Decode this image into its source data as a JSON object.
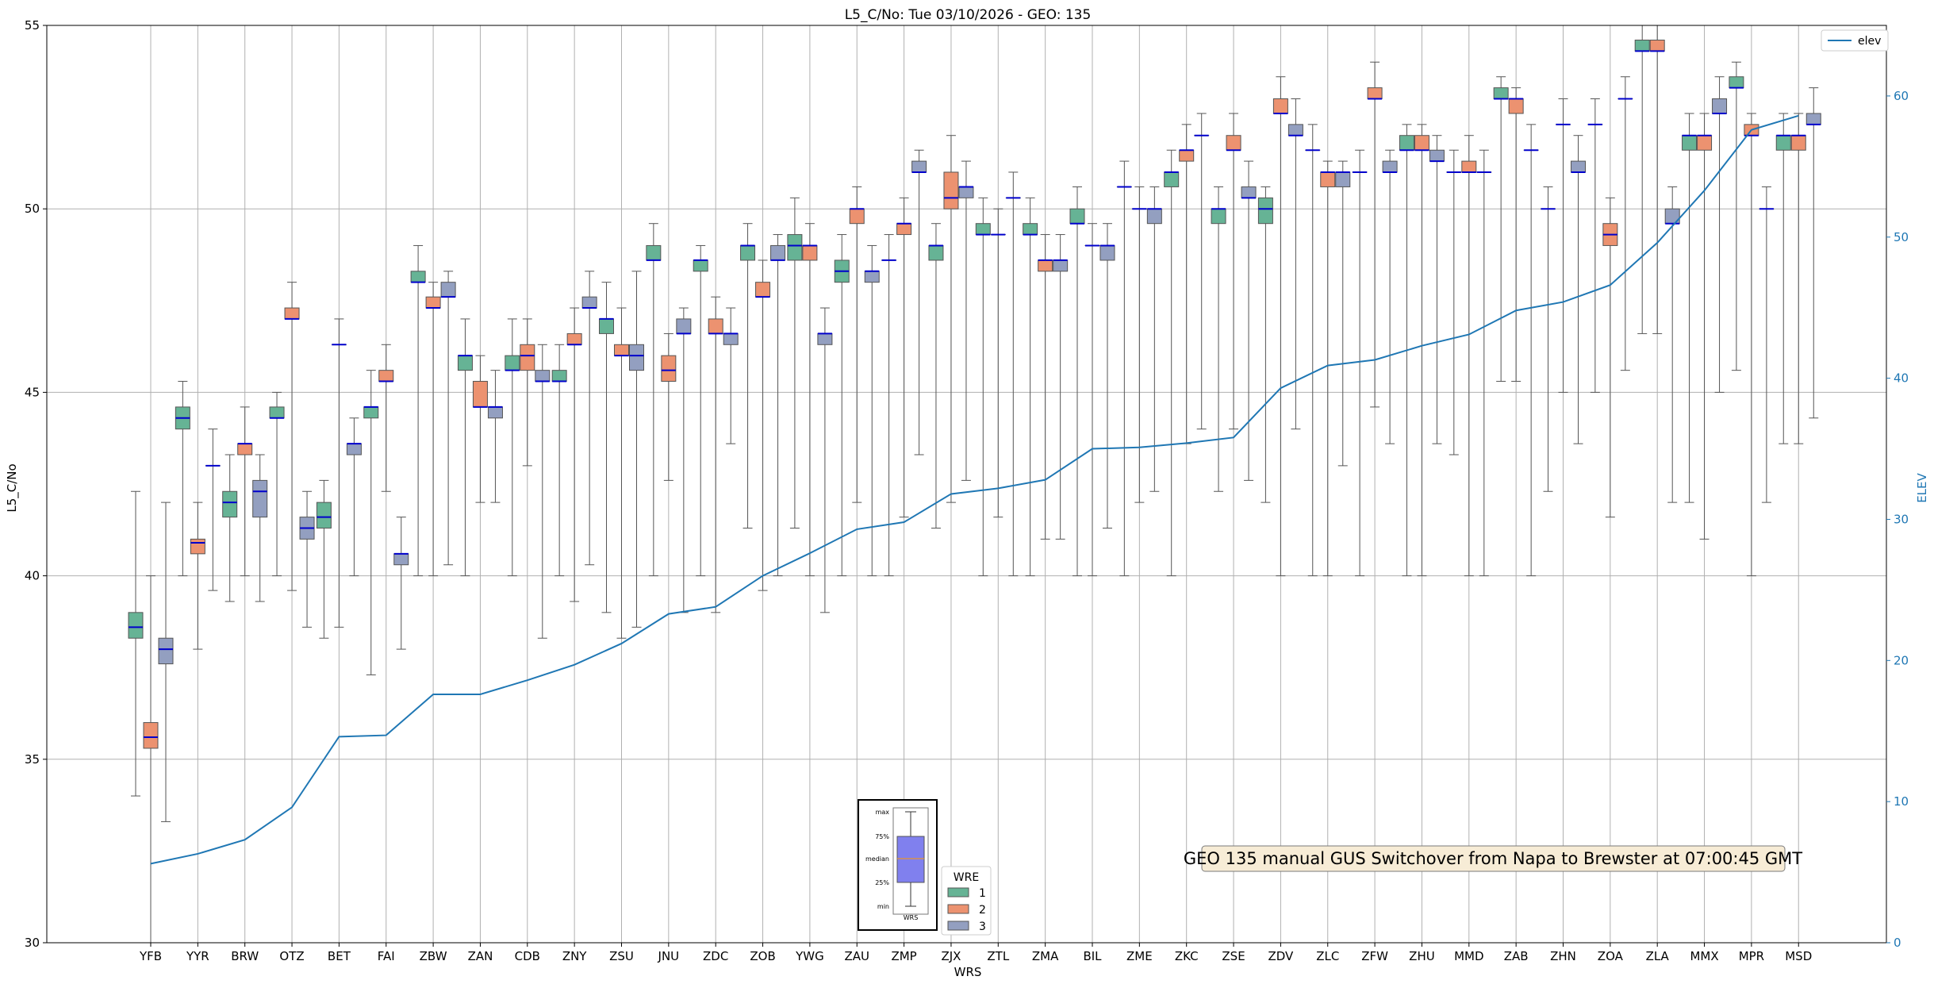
{
  "chart_data": {
    "type": "box",
    "title": "L5_C/No: Tue 03/10/2026 - GEO: 135",
    "xlabel": "WRS",
    "ylabel": "L5_C/No",
    "ylabel_right": "ELEV",
    "ylim": [
      30,
      55
    ],
    "ylim_right": [
      0,
      65
    ],
    "yticks": [
      30,
      35,
      40,
      45,
      50,
      55
    ],
    "yticks_right": [
      0,
      10,
      20,
      30,
      40,
      50,
      60
    ],
    "grid": true,
    "categories": [
      "YFB",
      "YYR",
      "BRW",
      "OTZ",
      "BET",
      "FAI",
      "ZBW",
      "ZAN",
      "CDB",
      "ZNY",
      "ZSU",
      "JNU",
      "ZDC",
      "ZOB",
      "YWG",
      "ZAU",
      "ZMP",
      "ZJX",
      "ZTL",
      "ZMA",
      "BIL",
      "ZME",
      "ZKC",
      "ZSE",
      "ZDV",
      "ZLC",
      "ZFW",
      "ZHU",
      "MMD",
      "ZAB",
      "ZHN",
      "ZOA",
      "ZLA",
      "MMX",
      "MPR",
      "MSD"
    ],
    "series_colors": {
      "1": "#66b395",
      "2": "#ec9270",
      "3": "#939fc0"
    },
    "elev_color": "#1f77b4",
    "legend": {
      "elev_label": "elev",
      "elev_position": "top-right",
      "wre_title": "WRE",
      "wre_labels": [
        "1",
        "2",
        "3"
      ],
      "wre_position": "bottom-center"
    },
    "boxes": [
      {
        "cat": "YFB",
        "wre": 1,
        "min": 34.0,
        "q1": 38.3,
        "med": 38.6,
        "q3": 39.0,
        "max": 42.3
      },
      {
        "cat": "YFB",
        "wre": 2,
        "min": 30.0,
        "q1": 35.3,
        "med": 35.6,
        "q3": 36.0,
        "max": 40.0
      },
      {
        "cat": "YFB",
        "wre": 3,
        "min": 33.3,
        "q1": 37.6,
        "med": 38.0,
        "q3": 38.3,
        "max": 42.0
      },
      {
        "cat": "YYR",
        "wre": 1,
        "min": 40.0,
        "q1": 44.0,
        "med": 44.3,
        "q3": 44.6,
        "max": 45.3
      },
      {
        "cat": "YYR",
        "wre": 2,
        "min": 38.0,
        "q1": 40.6,
        "med": 40.9,
        "q3": 41.0,
        "max": 42.0
      },
      {
        "cat": "YYR",
        "wre": 3,
        "min": 39.6,
        "q1": 43.0,
        "med": 43.0,
        "q3": 43.0,
        "max": 44.0
      },
      {
        "cat": "BRW",
        "wre": 1,
        "min": 39.3,
        "q1": 41.6,
        "med": 42.0,
        "q3": 42.3,
        "max": 43.3
      },
      {
        "cat": "BRW",
        "wre": 2,
        "min": 40.0,
        "q1": 43.3,
        "med": 43.6,
        "q3": 43.6,
        "max": 44.6
      },
      {
        "cat": "BRW",
        "wre": 3,
        "min": 39.3,
        "q1": 41.6,
        "med": 42.3,
        "q3": 42.6,
        "max": 43.3
      },
      {
        "cat": "OTZ",
        "wre": 1,
        "min": 40.0,
        "q1": 44.3,
        "med": 44.3,
        "q3": 44.6,
        "max": 45.0
      },
      {
        "cat": "OTZ",
        "wre": 2,
        "min": 39.6,
        "q1": 47.0,
        "med": 47.0,
        "q3": 47.3,
        "max": 48.0
      },
      {
        "cat": "OTZ",
        "wre": 3,
        "min": 38.6,
        "q1": 41.0,
        "med": 41.3,
        "q3": 41.6,
        "max": 42.3
      },
      {
        "cat": "BET",
        "wre": 1,
        "min": 38.3,
        "q1": 41.3,
        "med": 41.6,
        "q3": 42.0,
        "max": 42.6
      },
      {
        "cat": "BET",
        "wre": 2,
        "min": 38.6,
        "q1": 46.3,
        "med": 46.3,
        "q3": 46.3,
        "max": 47.0
      },
      {
        "cat": "BET",
        "wre": 3,
        "min": 40.0,
        "q1": 43.3,
        "med": 43.6,
        "q3": 43.6,
        "max": 44.3
      },
      {
        "cat": "FAI",
        "wre": 1,
        "min": 37.3,
        "q1": 44.3,
        "med": 44.6,
        "q3": 44.6,
        "max": 45.6
      },
      {
        "cat": "FAI",
        "wre": 2,
        "min": 42.3,
        "q1": 45.3,
        "med": 45.3,
        "q3": 45.6,
        "max": 46.3
      },
      {
        "cat": "FAI",
        "wre": 3,
        "min": 38.0,
        "q1": 40.3,
        "med": 40.6,
        "q3": 40.6,
        "max": 41.6
      },
      {
        "cat": "ZBW",
        "wre": 1,
        "min": 40.0,
        "q1": 48.0,
        "med": 48.0,
        "q3": 48.3,
        "max": 49.0
      },
      {
        "cat": "ZBW",
        "wre": 2,
        "min": 40.0,
        "q1": 47.3,
        "med": 47.3,
        "q3": 47.6,
        "max": 48.0
      },
      {
        "cat": "ZBW",
        "wre": 3,
        "min": 40.3,
        "q1": 47.6,
        "med": 47.6,
        "q3": 48.0,
        "max": 48.3
      },
      {
        "cat": "ZAN",
        "wre": 1,
        "min": 40.0,
        "q1": 45.6,
        "med": 46.0,
        "q3": 46.0,
        "max": 47.0
      },
      {
        "cat": "ZAN",
        "wre": 2,
        "min": 42.0,
        "q1": 44.6,
        "med": 44.6,
        "q3": 45.3,
        "max": 46.0
      },
      {
        "cat": "ZAN",
        "wre": 3,
        "min": 42.0,
        "q1": 44.3,
        "med": 44.6,
        "q3": 44.6,
        "max": 45.6
      },
      {
        "cat": "CDB",
        "wre": 1,
        "min": 40.0,
        "q1": 45.6,
        "med": 45.6,
        "q3": 46.0,
        "max": 47.0
      },
      {
        "cat": "CDB",
        "wre": 2,
        "min": 43.0,
        "q1": 45.6,
        "med": 46.0,
        "q3": 46.3,
        "max": 47.0
      },
      {
        "cat": "CDB",
        "wre": 3,
        "min": 38.3,
        "q1": 45.3,
        "med": 45.3,
        "q3": 45.6,
        "max": 46.3
      },
      {
        "cat": "ZNY",
        "wre": 1,
        "min": 40.0,
        "q1": 45.3,
        "med": 45.3,
        "q3": 45.6,
        "max": 46.3
      },
      {
        "cat": "ZNY",
        "wre": 2,
        "min": 39.3,
        "q1": 46.3,
        "med": 46.3,
        "q3": 46.6,
        "max": 47.3
      },
      {
        "cat": "ZNY",
        "wre": 3,
        "min": 40.3,
        "q1": 47.3,
        "med": 47.3,
        "q3": 47.6,
        "max": 48.3
      },
      {
        "cat": "ZSU",
        "wre": 1,
        "min": 39.0,
        "q1": 46.6,
        "med": 47.0,
        "q3": 47.0,
        "max": 48.0
      },
      {
        "cat": "ZSU",
        "wre": 2,
        "min": 38.3,
        "q1": 46.0,
        "med": 46.0,
        "q3": 46.3,
        "max": 47.3
      },
      {
        "cat": "ZSU",
        "wre": 3,
        "min": 38.6,
        "q1": 45.6,
        "med": 46.0,
        "q3": 46.3,
        "max": 48.3
      },
      {
        "cat": "JNU",
        "wre": 1,
        "min": 40.0,
        "q1": 48.6,
        "med": 48.6,
        "q3": 49.0,
        "max": 49.6
      },
      {
        "cat": "JNU",
        "wre": 2,
        "min": 42.6,
        "q1": 45.3,
        "med": 45.6,
        "q3": 46.0,
        "max": 46.6
      },
      {
        "cat": "JNU",
        "wre": 3,
        "min": 39.0,
        "q1": 46.6,
        "med": 46.6,
        "q3": 47.0,
        "max": 47.3
      },
      {
        "cat": "ZDC",
        "wre": 1,
        "min": 40.0,
        "q1": 48.3,
        "med": 48.6,
        "q3": 48.6,
        "max": 49.0
      },
      {
        "cat": "ZDC",
        "wre": 2,
        "min": 39.0,
        "q1": 46.6,
        "med": 46.6,
        "q3": 47.0,
        "max": 47.6
      },
      {
        "cat": "ZDC",
        "wre": 3,
        "min": 43.6,
        "q1": 46.3,
        "med": 46.6,
        "q3": 46.6,
        "max": 47.3
      },
      {
        "cat": "ZOB",
        "wre": 1,
        "min": 41.3,
        "q1": 48.6,
        "med": 49.0,
        "q3": 49.0,
        "max": 49.6
      },
      {
        "cat": "ZOB",
        "wre": 2,
        "min": 39.6,
        "q1": 47.6,
        "med": 47.6,
        "q3": 48.0,
        "max": 48.6
      },
      {
        "cat": "ZOB",
        "wre": 3,
        "min": 40.0,
        "q1": 48.6,
        "med": 48.6,
        "q3": 49.0,
        "max": 49.3
      },
      {
        "cat": "YWG",
        "wre": 1,
        "min": 41.3,
        "q1": 48.6,
        "med": 49.0,
        "q3": 49.3,
        "max": 50.3
      },
      {
        "cat": "YWG",
        "wre": 2,
        "min": 40.0,
        "q1": 48.6,
        "med": 49.0,
        "q3": 49.0,
        "max": 49.6
      },
      {
        "cat": "YWG",
        "wre": 3,
        "min": 39.0,
        "q1": 46.3,
        "med": 46.6,
        "q3": 46.6,
        "max": 47.3
      },
      {
        "cat": "ZAU",
        "wre": 1,
        "min": 40.0,
        "q1": 48.0,
        "med": 48.3,
        "q3": 48.6,
        "max": 49.3
      },
      {
        "cat": "ZAU",
        "wre": 2,
        "min": 42.0,
        "q1": 49.6,
        "med": 50.0,
        "q3": 50.0,
        "max": 50.6
      },
      {
        "cat": "ZAU",
        "wre": 3,
        "min": 40.0,
        "q1": 48.0,
        "med": 48.3,
        "q3": 48.3,
        "max": 49.0
      },
      {
        "cat": "ZMP",
        "wre": 1,
        "min": 40.0,
        "q1": 48.6,
        "med": 48.6,
        "q3": 48.6,
        "max": 49.3
      },
      {
        "cat": "ZMP",
        "wre": 2,
        "min": 41.6,
        "q1": 49.3,
        "med": 49.6,
        "q3": 49.6,
        "max": 50.3
      },
      {
        "cat": "ZMP",
        "wre": 3,
        "min": 43.3,
        "q1": 51.0,
        "med": 51.0,
        "q3": 51.3,
        "max": 51.6
      },
      {
        "cat": "ZJX",
        "wre": 1,
        "min": 41.3,
        "q1": 48.6,
        "med": 49.0,
        "q3": 49.0,
        "max": 49.6
      },
      {
        "cat": "ZJX",
        "wre": 2,
        "min": 42.0,
        "q1": 50.0,
        "med": 50.3,
        "q3": 51.0,
        "max": 52.0
      },
      {
        "cat": "ZJX",
        "wre": 3,
        "min": 42.6,
        "q1": 50.3,
        "med": 50.6,
        "q3": 50.6,
        "max": 51.3
      },
      {
        "cat": "ZTL",
        "wre": 1,
        "min": 40.0,
        "q1": 49.3,
        "med": 49.3,
        "q3": 49.6,
        "max": 50.3
      },
      {
        "cat": "ZTL",
        "wre": 2,
        "min": 41.6,
        "q1": 49.3,
        "med": 49.3,
        "q3": 49.3,
        "max": 50.0
      },
      {
        "cat": "ZTL",
        "wre": 3,
        "min": 40.0,
        "q1": 50.3,
        "med": 50.3,
        "q3": 50.3,
        "max": 51.0
      },
      {
        "cat": "ZMA",
        "wre": 1,
        "min": 40.0,
        "q1": 49.3,
        "med": 49.3,
        "q3": 49.6,
        "max": 50.3
      },
      {
        "cat": "ZMA",
        "wre": 2,
        "min": 41.0,
        "q1": 48.3,
        "med": 48.6,
        "q3": 48.6,
        "max": 49.3
      },
      {
        "cat": "ZMA",
        "wre": 3,
        "min": 41.0,
        "q1": 48.3,
        "med": 48.6,
        "q3": 48.6,
        "max": 49.3
      },
      {
        "cat": "BIL",
        "wre": 1,
        "min": 40.0,
        "q1": 49.6,
        "med": 49.6,
        "q3": 50.0,
        "max": 50.6
      },
      {
        "cat": "BIL",
        "wre": 2,
        "min": 40.0,
        "q1": 49.0,
        "med": 49.0,
        "q3": 49.0,
        "max": 49.6
      },
      {
        "cat": "BIL",
        "wre": 3,
        "min": 41.3,
        "q1": 48.6,
        "med": 49.0,
        "q3": 49.0,
        "max": 49.6
      },
      {
        "cat": "ZME",
        "wre": 1,
        "min": 40.0,
        "q1": 50.6,
        "med": 50.6,
        "q3": 50.6,
        "max": 51.3
      },
      {
        "cat": "ZME",
        "wre": 2,
        "min": 42.0,
        "q1": 50.0,
        "med": 50.0,
        "q3": 50.0,
        "max": 50.6
      },
      {
        "cat": "ZME",
        "wre": 3,
        "min": 42.3,
        "q1": 49.6,
        "med": 50.0,
        "q3": 50.0,
        "max": 50.6
      },
      {
        "cat": "ZKC",
        "wre": 1,
        "min": 40.0,
        "q1": 50.6,
        "med": 51.0,
        "q3": 51.0,
        "max": 51.6
      },
      {
        "cat": "ZKC",
        "wre": 2,
        "min": 43.6,
        "q1": 51.3,
        "med": 51.6,
        "q3": 51.6,
        "max": 52.3
      },
      {
        "cat": "ZKC",
        "wre": 3,
        "min": 44.0,
        "q1": 52.0,
        "med": 52.0,
        "q3": 52.0,
        "max": 52.6
      },
      {
        "cat": "ZSE",
        "wre": 1,
        "min": 42.3,
        "q1": 49.6,
        "med": 50.0,
        "q3": 50.0,
        "max": 50.6
      },
      {
        "cat": "ZSE",
        "wre": 2,
        "min": 44.0,
        "q1": 51.6,
        "med": 51.6,
        "q3": 52.0,
        "max": 52.6
      },
      {
        "cat": "ZSE",
        "wre": 3,
        "min": 42.6,
        "q1": 50.3,
        "med": 50.3,
        "q3": 50.6,
        "max": 51.3
      },
      {
        "cat": "ZDV",
        "wre": 1,
        "min": 42.0,
        "q1": 49.6,
        "med": 50.0,
        "q3": 50.3,
        "max": 50.6
      },
      {
        "cat": "ZDV",
        "wre": 2,
        "min": 40.0,
        "q1": 52.6,
        "med": 52.6,
        "q3": 53.0,
        "max": 53.6
      },
      {
        "cat": "ZDV",
        "wre": 3,
        "min": 44.0,
        "q1": 52.0,
        "med": 52.0,
        "q3": 52.3,
        "max": 53.0
      },
      {
        "cat": "ZLC",
        "wre": 1,
        "min": 40.0,
        "q1": 51.6,
        "med": 51.6,
        "q3": 51.6,
        "max": 52.3
      },
      {
        "cat": "ZLC",
        "wre": 2,
        "min": 40.0,
        "q1": 50.6,
        "med": 51.0,
        "q3": 51.0,
        "max": 51.3
      },
      {
        "cat": "ZLC",
        "wre": 3,
        "min": 43.0,
        "q1": 50.6,
        "med": 51.0,
        "q3": 51.0,
        "max": 51.3
      },
      {
        "cat": "ZFW",
        "wre": 1,
        "min": 40.0,
        "q1": 51.0,
        "med": 51.0,
        "q3": 51.0,
        "max": 51.6
      },
      {
        "cat": "ZFW",
        "wre": 2,
        "min": 44.6,
        "q1": 53.0,
        "med": 53.0,
        "q3": 53.3,
        "max": 54.0
      },
      {
        "cat": "ZFW",
        "wre": 3,
        "min": 43.6,
        "q1": 51.0,
        "med": 51.0,
        "q3": 51.3,
        "max": 51.6
      },
      {
        "cat": "ZHU",
        "wre": 1,
        "min": 40.0,
        "q1": 51.6,
        "med": 51.6,
        "q3": 52.0,
        "max": 52.3
      },
      {
        "cat": "ZHU",
        "wre": 2,
        "min": 40.0,
        "q1": 51.6,
        "med": 51.6,
        "q3": 52.0,
        "max": 52.3
      },
      {
        "cat": "ZHU",
        "wre": 3,
        "min": 43.6,
        "q1": 51.3,
        "med": 51.3,
        "q3": 51.6,
        "max": 52.0
      },
      {
        "cat": "MMD",
        "wre": 1,
        "min": 43.3,
        "q1": 51.0,
        "med": 51.0,
        "q3": 51.0,
        "max": 51.6
      },
      {
        "cat": "MMD",
        "wre": 2,
        "min": 40.0,
        "q1": 51.0,
        "med": 51.0,
        "q3": 51.3,
        "max": 52.0
      },
      {
        "cat": "MMD",
        "wre": 3,
        "min": 40.0,
        "q1": 51.0,
        "med": 51.0,
        "q3": 51.0,
        "max": 51.6
      },
      {
        "cat": "ZAB",
        "wre": 1,
        "min": 45.3,
        "q1": 53.0,
        "med": 53.0,
        "q3": 53.3,
        "max": 53.6
      },
      {
        "cat": "ZAB",
        "wre": 2,
        "min": 45.3,
        "q1": 52.6,
        "med": 53.0,
        "q3": 53.0,
        "max": 53.3
      },
      {
        "cat": "ZAB",
        "wre": 3,
        "min": 40.0,
        "q1": 51.6,
        "med": 51.6,
        "q3": 51.6,
        "max": 52.3
      },
      {
        "cat": "ZHN",
        "wre": 1,
        "min": 42.3,
        "q1": 50.0,
        "med": 50.0,
        "q3": 50.0,
        "max": 50.6
      },
      {
        "cat": "ZHN",
        "wre": 2,
        "min": 45.0,
        "q1": 52.3,
        "med": 52.3,
        "q3": 52.3,
        "max": 53.0
      },
      {
        "cat": "ZHN",
        "wre": 3,
        "min": 43.6,
        "q1": 51.0,
        "med": 51.0,
        "q3": 51.3,
        "max": 52.0
      },
      {
        "cat": "ZOA",
        "wre": 1,
        "min": 45.0,
        "q1": 52.3,
        "med": 52.3,
        "q3": 52.3,
        "max": 53.0
      },
      {
        "cat": "ZOA",
        "wre": 2,
        "min": 41.6,
        "q1": 49.0,
        "med": 49.3,
        "q3": 49.6,
        "max": 50.3
      },
      {
        "cat": "ZOA",
        "wre": 3,
        "min": 45.6,
        "q1": 53.0,
        "med": 53.0,
        "q3": 53.0,
        "max": 53.6
      },
      {
        "cat": "ZLA",
        "wre": 1,
        "min": 46.6,
        "q1": 54.3,
        "med": 54.3,
        "q3": 54.6,
        "max": 55.0
      },
      {
        "cat": "ZLA",
        "wre": 2,
        "min": 46.6,
        "q1": 54.3,
        "med": 54.3,
        "q3": 54.6,
        "max": 55.0
      },
      {
        "cat": "ZLA",
        "wre": 3,
        "min": 42.0,
        "q1": 49.6,
        "med": 49.6,
        "q3": 50.0,
        "max": 50.6
      },
      {
        "cat": "MMX",
        "wre": 1,
        "min": 42.0,
        "q1": 51.6,
        "med": 52.0,
        "q3": 52.0,
        "max": 52.6
      },
      {
        "cat": "MMX",
        "wre": 2,
        "min": 41.0,
        "q1": 51.6,
        "med": 52.0,
        "q3": 52.0,
        "max": 52.6
      },
      {
        "cat": "MMX",
        "wre": 3,
        "min": 45.0,
        "q1": 52.6,
        "med": 52.6,
        "q3": 53.0,
        "max": 53.6
      },
      {
        "cat": "MPR",
        "wre": 1,
        "min": 45.6,
        "q1": 53.3,
        "med": 53.3,
        "q3": 53.6,
        "max": 54.0
      },
      {
        "cat": "MPR",
        "wre": 2,
        "min": 40.0,
        "q1": 52.0,
        "med": 52.0,
        "q3": 52.3,
        "max": 52.6
      },
      {
        "cat": "MPR",
        "wre": 3,
        "min": 42.0,
        "q1": 50.0,
        "med": 50.0,
        "q3": 50.0,
        "max": 50.6
      },
      {
        "cat": "MSD",
        "wre": 1,
        "min": 43.6,
        "q1": 51.6,
        "med": 52.0,
        "q3": 52.0,
        "max": 52.6
      },
      {
        "cat": "MSD",
        "wre": 2,
        "min": 43.6,
        "q1": 51.6,
        "med": 52.0,
        "q3": 52.0,
        "max": 52.6
      },
      {
        "cat": "MSD",
        "wre": 3,
        "min": 44.3,
        "q1": 52.3,
        "med": 52.3,
        "q3": 52.6,
        "max": 53.3
      }
    ],
    "elev": [
      5.6,
      6.3,
      7.3,
      9.6,
      14.6,
      14.7,
      17.6,
      17.6,
      18.6,
      19.7,
      21.2,
      23.3,
      23.8,
      26.0,
      27.6,
      29.3,
      29.8,
      31.8,
      32.2,
      32.8,
      35.0,
      35.1,
      35.4,
      35.8,
      39.3,
      40.9,
      41.3,
      42.3,
      43.1,
      44.8,
      45.4,
      46.6,
      49.6,
      53.3,
      57.6,
      58.6
    ],
    "annotation": "GEO 135 manual GUS Switchover from Napa to Brewster at 07:00:45 GMT",
    "inset_legend": {
      "labels": [
        "max",
        "75%",
        "median",
        "25%",
        "min"
      ],
      "xlabel": "WRS"
    }
  }
}
